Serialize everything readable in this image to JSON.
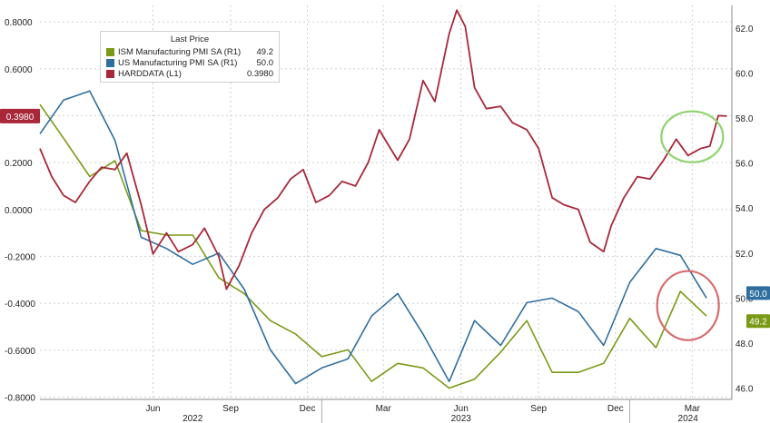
{
  "chart_data": {
    "type": "line",
    "legend_title": "Last Price",
    "legend_placement": "top-left",
    "grid": true,
    "y_left": {
      "ticks": [
        "0.8000",
        "0.6000",
        "0.4000",
        "0.2000",
        "0.0000",
        "-0.2000",
        "-0.4000",
        "-0.6000",
        "-0.8000"
      ],
      "ylim": [
        -0.81,
        0.87
      ]
    },
    "y_right": {
      "ticks": [
        "62.0",
        "60.0",
        "58.0",
        "56.0",
        "54.0",
        "52.0",
        "50.0",
        "48.0",
        "46.0"
      ],
      "ylim": [
        45.5,
        63.0
      ]
    },
    "x_month_labels": [
      "Jun",
      "Sep",
      "Dec",
      "Mar",
      "Jun",
      "Sep",
      "Dec",
      "Mar"
    ],
    "x_year_labels": [
      "2022",
      "2023",
      "2024"
    ],
    "xlim": [
      "2022-02-01",
      "2024-05-01"
    ],
    "series": [
      {
        "name": "ISM Manufacturing PMI SA (R1)",
        "last": "49.2",
        "color": "#7a9a17",
        "axis": "right",
        "tag": "49.2",
        "points": [
          [
            "2022-02-01",
            58.6
          ],
          [
            "2022-03-01",
            57.1
          ],
          [
            "2022-04-01",
            55.4
          ],
          [
            "2022-05-01",
            56.1
          ],
          [
            "2022-06-01",
            53.0
          ],
          [
            "2022-07-01",
            52.8
          ],
          [
            "2022-08-01",
            52.8
          ],
          [
            "2022-09-01",
            50.9
          ],
          [
            "2022-10-01",
            50.2
          ],
          [
            "2022-11-01",
            49.0
          ],
          [
            "2022-12-01",
            48.4
          ],
          [
            "2023-01-01",
            47.4
          ],
          [
            "2023-02-01",
            47.7
          ],
          [
            "2023-03-01",
            46.3
          ],
          [
            "2023-04-01",
            47.1
          ],
          [
            "2023-05-01",
            46.9
          ],
          [
            "2023-06-01",
            46.0
          ],
          [
            "2023-07-01",
            46.4
          ],
          [
            "2023-08-01",
            47.6
          ],
          [
            "2023-09-01",
            49.0
          ],
          [
            "2023-10-01",
            46.7
          ],
          [
            "2023-11-01",
            46.7
          ],
          [
            "2023-12-01",
            47.1
          ],
          [
            "2024-01-01",
            49.1
          ],
          [
            "2024-02-01",
            47.8
          ],
          [
            "2024-03-01",
            50.3
          ],
          [
            "2024-04-01",
            49.2
          ]
        ]
      },
      {
        "name": "US Manufacturing PMI SA (R1)",
        "last": "50.0",
        "color": "#2f6f9f",
        "axis": "right",
        "tag": "50.0",
        "points": [
          [
            "2022-02-01",
            57.3
          ],
          [
            "2022-03-01",
            58.8
          ],
          [
            "2022-04-01",
            59.2
          ],
          [
            "2022-05-01",
            57.0
          ],
          [
            "2022-06-01",
            52.7
          ],
          [
            "2022-07-01",
            52.2
          ],
          [
            "2022-08-01",
            51.5
          ],
          [
            "2022-09-01",
            52.0
          ],
          [
            "2022-10-01",
            50.4
          ],
          [
            "2022-11-01",
            47.7
          ],
          [
            "2022-12-01",
            46.2
          ],
          [
            "2023-01-01",
            46.9
          ],
          [
            "2023-02-01",
            47.3
          ],
          [
            "2023-03-01",
            49.2
          ],
          [
            "2023-04-01",
            50.2
          ],
          [
            "2023-05-01",
            48.4
          ],
          [
            "2023-06-01",
            46.3
          ],
          [
            "2023-07-01",
            49.0
          ],
          [
            "2023-08-01",
            47.9
          ],
          [
            "2023-09-01",
            49.8
          ],
          [
            "2023-10-01",
            50.0
          ],
          [
            "2023-11-01",
            49.4
          ],
          [
            "2023-12-01",
            47.9
          ],
          [
            "2024-01-01",
            50.7
          ],
          [
            "2024-02-01",
            52.2
          ],
          [
            "2024-03-01",
            51.9
          ],
          [
            "2024-04-01",
            50.0
          ]
        ]
      },
      {
        "name": "HARDDATA (L1)",
        "last": "0.3980",
        "color": "#a8283a",
        "axis": "left",
        "tag": "0.3980",
        "points": [
          [
            "2022-02-01",
            0.26
          ],
          [
            "2022-02-15",
            0.14
          ],
          [
            "2022-03-01",
            0.06
          ],
          [
            "2022-03-15",
            0.03
          ],
          [
            "2022-04-01",
            0.12
          ],
          [
            "2022-04-15",
            0.18
          ],
          [
            "2022-05-01",
            0.17
          ],
          [
            "2022-05-15",
            0.24
          ],
          [
            "2022-06-01",
            0.02
          ],
          [
            "2022-06-15",
            -0.19
          ],
          [
            "2022-07-01",
            -0.1
          ],
          [
            "2022-07-15",
            -0.18
          ],
          [
            "2022-08-01",
            -0.15
          ],
          [
            "2022-08-15",
            -0.08
          ],
          [
            "2022-09-01",
            -0.2
          ],
          [
            "2022-09-10",
            -0.34
          ],
          [
            "2022-09-25",
            -0.24
          ],
          [
            "2022-10-10",
            -0.1
          ],
          [
            "2022-10-25",
            0.0
          ],
          [
            "2022-11-10",
            0.05
          ],
          [
            "2022-11-25",
            0.13
          ],
          [
            "2022-12-10",
            0.17
          ],
          [
            "2022-12-25",
            0.03
          ],
          [
            "2023-01-10",
            0.06
          ],
          [
            "2023-01-25",
            0.12
          ],
          [
            "2023-02-10",
            0.1
          ],
          [
            "2023-02-25",
            0.2
          ],
          [
            "2023-03-10",
            0.34
          ],
          [
            "2023-03-20",
            0.28
          ],
          [
            "2023-04-01",
            0.21
          ],
          [
            "2023-04-15",
            0.3
          ],
          [
            "2023-05-01",
            0.55
          ],
          [
            "2023-05-15",
            0.46
          ],
          [
            "2023-06-01",
            0.75
          ],
          [
            "2023-06-10",
            0.85
          ],
          [
            "2023-06-20",
            0.78
          ],
          [
            "2023-07-01",
            0.52
          ],
          [
            "2023-07-15",
            0.43
          ],
          [
            "2023-08-01",
            0.44
          ],
          [
            "2023-08-15",
            0.37
          ],
          [
            "2023-09-01",
            0.34
          ],
          [
            "2023-09-15",
            0.26
          ],
          [
            "2023-10-01",
            0.05
          ],
          [
            "2023-10-15",
            0.02
          ],
          [
            "2023-11-01",
            0.0
          ],
          [
            "2023-11-15",
            -0.14
          ],
          [
            "2023-12-01",
            -0.18
          ],
          [
            "2023-12-10",
            -0.07
          ],
          [
            "2023-12-25",
            0.05
          ],
          [
            "2024-01-10",
            0.14
          ],
          [
            "2024-01-25",
            0.13
          ],
          [
            "2024-02-10",
            0.21
          ],
          [
            "2024-02-25",
            0.3
          ],
          [
            "2024-03-10",
            0.23
          ],
          [
            "2024-03-25",
            0.26
          ],
          [
            "2024-04-05",
            0.27
          ],
          [
            "2024-04-15",
            0.4
          ],
          [
            "2024-04-25",
            0.398
          ]
        ]
      }
    ],
    "annotations": [
      {
        "shape": "ellipse",
        "color": "#8fd46f",
        "x": "2024-03-15",
        "y_left": 0.31,
        "label": ""
      },
      {
        "shape": "ellipse",
        "color": "#d96a6a",
        "x": "2024-03-10",
        "y_left": -0.41,
        "label": ""
      }
    ]
  }
}
